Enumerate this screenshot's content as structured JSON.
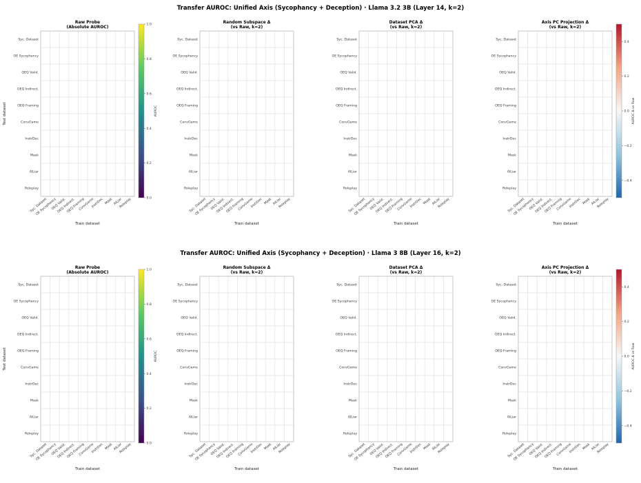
{
  "chart_data": [
    {
      "figure_title": "Transfer AUROC: Unified Axis (Sycophancy + Deception)  ·  Llama 3.2 3B  (Layer 14, k=2)",
      "labels": [
        "Syc. Dataset",
        "OE Sycophancy",
        "OEQ Valid.",
        "OEQ Indirect.",
        "OEQ Framing",
        "ConvGame",
        "InstrDec",
        "Mask",
        "AILiar",
        "Roleplay"
      ],
      "xlabel": "Train dataset",
      "ylabel": "Test dataset",
      "panels": [
        {
          "type": "heatmap",
          "title": "Raw Probe\n(Absolute AUROC)",
          "colorbar_label": "AUROC",
          "colorbar_ticks": [
            "0.0",
            "0.2",
            "0.4",
            "0.6",
            "0.8",
            "1.0"
          ]
        },
        {
          "type": "heatmap",
          "title": "Random Subspace Δ\n(vs Raw, k=2)",
          "colorbar_label": "",
          "colorbar_ticks": []
        },
        {
          "type": "heatmap",
          "title": "Dataset PCA Δ\n(vs Raw, k=2)",
          "colorbar_label": "",
          "colorbar_ticks": []
        },
        {
          "type": "heatmap",
          "title": "Axis PC Projection Δ\n(vs Raw, k=2)",
          "colorbar_label": "AUROC Δ vs Raw",
          "colorbar_ticks": [
            "−0.4",
            "−0.2",
            "0.0",
            "0.2",
            "0.4"
          ]
        }
      ]
    },
    {
      "figure_title": "Transfer AUROC: Unified Axis (Sycophancy + Deception)  ·  Llama 3 8B  (Layer 16, k=2)",
      "labels": [
        "Syc. Dataset",
        "OE Sycophancy",
        "OEQ Valid.",
        "OEQ Indirect.",
        "OEQ Framing",
        "ConvGame",
        "InstrDec",
        "Mask",
        "AILiar",
        "Roleplay"
      ],
      "xlabel": "Train dataset",
      "ylabel": "Test dataset",
      "panels": [
        {
          "type": "heatmap",
          "title": "Raw Probe\n(Absolute AUROC)",
          "colorbar_label": "AUROC",
          "colorbar_ticks": [
            "0.0",
            "0.2",
            "0.4",
            "0.6",
            "0.8",
            "1.0"
          ]
        },
        {
          "type": "heatmap",
          "title": "Random Subspace Δ\n(vs Raw, k=2)",
          "colorbar_label": "",
          "colorbar_ticks": []
        },
        {
          "type": "heatmap",
          "title": "Dataset PCA Δ\n(vs Raw, k=2)",
          "colorbar_label": "",
          "colorbar_ticks": []
        },
        {
          "type": "heatmap",
          "title": "Axis PC Projection Δ\n(vs Raw, k=2)",
          "colorbar_label": "AUROC Δ vs Raw",
          "colorbar_ticks": [
            "−0.4",
            "−0.2",
            "0.0",
            "0.2",
            "0.4"
          ]
        }
      ]
    }
  ]
}
